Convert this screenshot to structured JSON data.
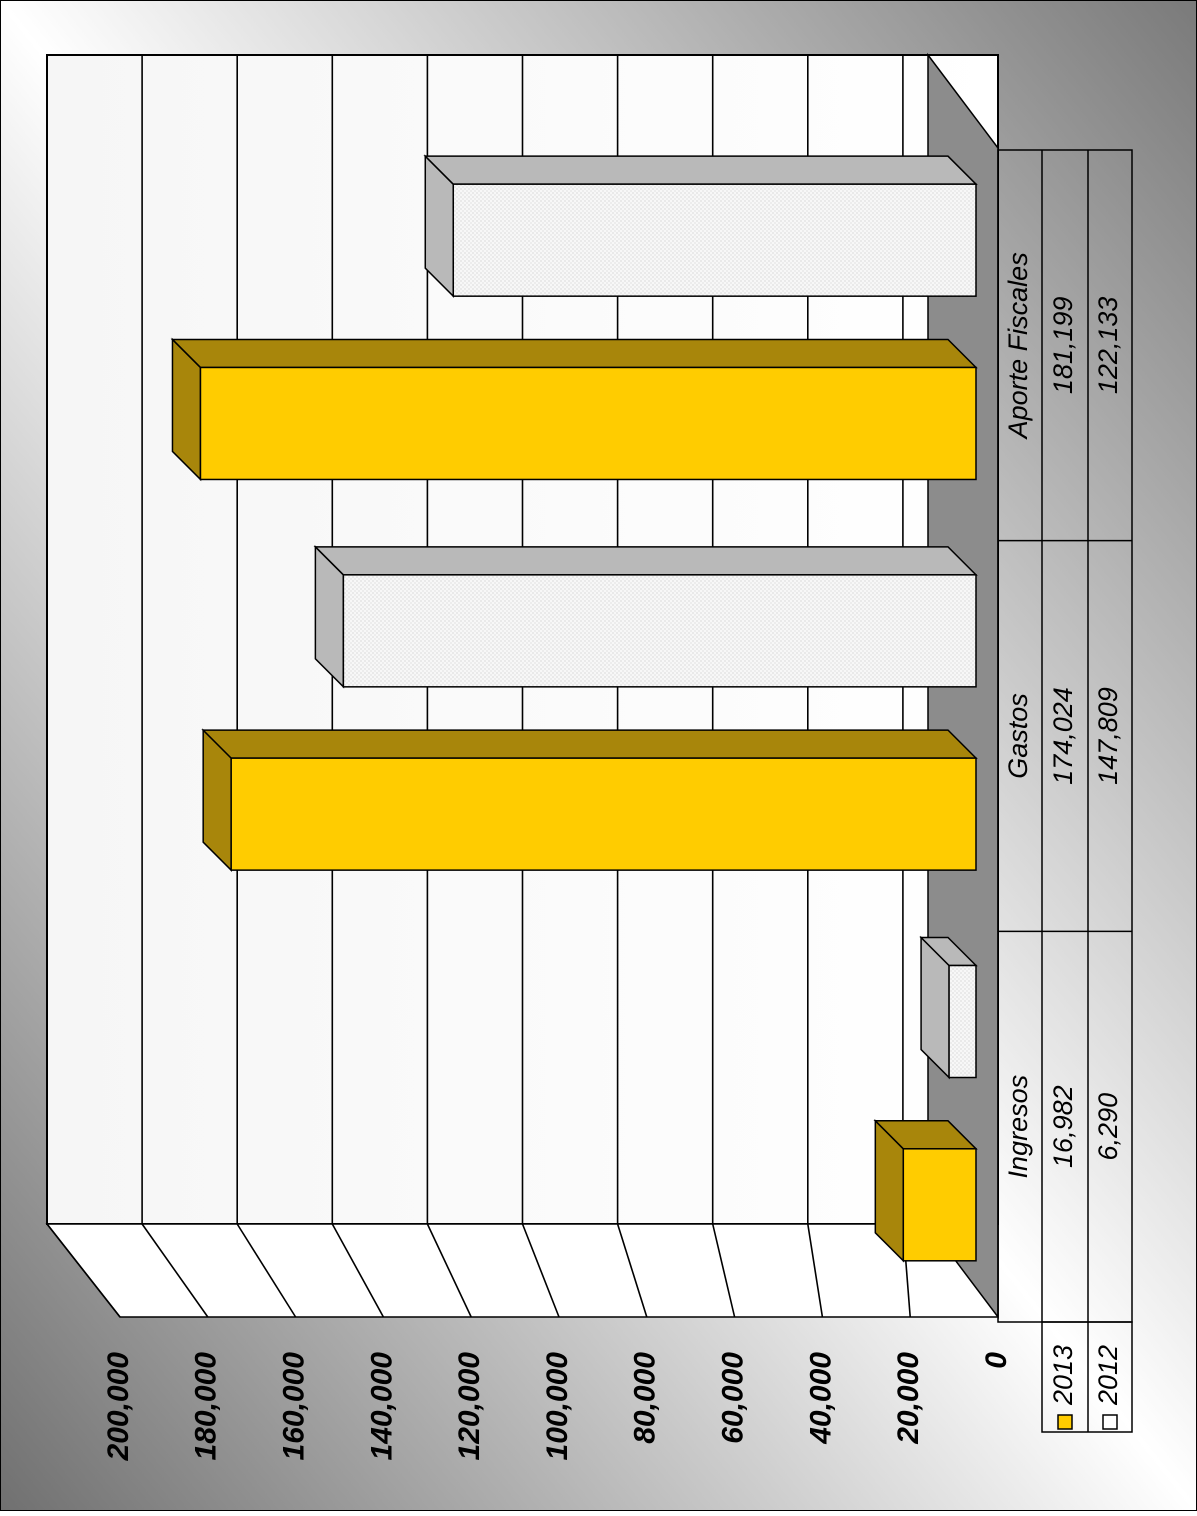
{
  "chart_data": {
    "type": "bar",
    "orientation": "rotated 90° clockwise (3D clustered column chart with data table)",
    "categories": [
      "Ingresos",
      "Gastos",
      "Aporte Fiscales"
    ],
    "series": [
      {
        "name": "2013",
        "values": [
          16982,
          174024,
          181199
        ]
      },
      {
        "name": "2012",
        "values": [
          6290,
          147809,
          122133
        ]
      }
    ],
    "value_labels": {
      "2013": [
        "16,982",
        "174,024",
        "181,199"
      ],
      "2012": [
        "6,290",
        "147,809",
        "122,133"
      ]
    },
    "ylim": [
      0,
      200000
    ],
    "yticks": [
      0,
      20000,
      40000,
      60000,
      80000,
      100000,
      120000,
      140000,
      160000,
      180000,
      200000
    ],
    "ytick_labels": [
      "0",
      "20,000",
      "40,000",
      "60,000",
      "80,000",
      "100,000",
      "120,000",
      "140,000",
      "160,000",
      "180,000",
      "200,000"
    ],
    "title": "",
    "xlabel": "",
    "ylabel": "",
    "grid": true,
    "legend": "data table",
    "colors": {
      "2013": "#FFCC00",
      "2013_side": "#A8860B",
      "2012": "#F4F4F4",
      "2012_side": "#B9B9B9",
      "floor": "#8C8C8C",
      "grid": "#000000"
    }
  }
}
